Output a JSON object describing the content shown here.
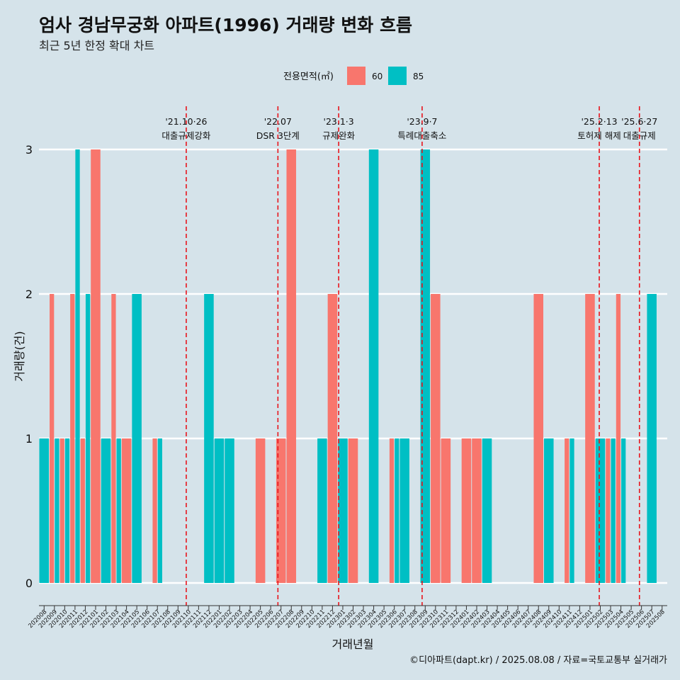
{
  "chart_data": {
    "type": "bar",
    "title": "엄사 경남무궁화 아파트(1996) 거래량 변화 흐름",
    "subtitle": "최근 5년 한정 확대 차트",
    "xlabel": "거래년월",
    "ylabel": "거래량(건)",
    "ylim": [
      0,
      3
    ],
    "yticks": [
      "0",
      "1",
      "2",
      "3"
    ],
    "legend": {
      "title": "전용면적(㎡)",
      "position": "top"
    },
    "categories": [
      "202008",
      "202009",
      "202010",
      "202011",
      "202012",
      "202101",
      "202102",
      "202103",
      "202104",
      "202105",
      "202106",
      "202107",
      "202108",
      "202109",
      "202110",
      "202111",
      "202112",
      "202201",
      "202202",
      "202203",
      "202204",
      "202205",
      "202206",
      "202207",
      "202208",
      "202209",
      "202210",
      "202211",
      "202212",
      "202301",
      "202302",
      "202303",
      "202304",
      "202305",
      "202306",
      "202307",
      "202308",
      "202309",
      "202310",
      "202311",
      "202312",
      "202401",
      "202402",
      "202403",
      "202404",
      "202405",
      "202406",
      "202407",
      "202408",
      "202409",
      "202410",
      "202411",
      "202412",
      "202501",
      "202502",
      "202503",
      "202504",
      "202505",
      "202506",
      "202507",
      "202508"
    ],
    "series": [
      {
        "name": "60",
        "color": "#f8766d",
        "values": [
          0,
          2,
          1,
          2,
          1,
          3,
          0,
          2,
          1,
          0,
          0,
          1,
          0,
          0,
          0,
          0,
          0,
          0,
          0,
          0,
          0,
          1,
          0,
          1,
          3,
          0,
          0,
          0,
          2,
          0,
          1,
          0,
          0,
          0,
          1,
          0,
          0,
          0,
          2,
          1,
          0,
          1,
          1,
          0,
          0,
          0,
          0,
          0,
          2,
          0,
          0,
          1,
          0,
          2,
          0,
          1,
          2,
          0,
          0,
          0,
          0
        ]
      },
      {
        "name": "85",
        "color": "#00bfc4",
        "values": [
          1,
          1,
          1,
          3,
          2,
          0,
          1,
          1,
          0,
          2,
          0,
          1,
          0,
          0,
          0,
          0,
          2,
          1,
          1,
          0,
          0,
          0,
          0,
          0,
          0,
          0,
          0,
          1,
          0,
          1,
          0,
          0,
          3,
          0,
          1,
          1,
          0,
          3,
          0,
          0,
          0,
          0,
          0,
          1,
          0,
          0,
          0,
          0,
          0,
          1,
          0,
          1,
          0,
          0,
          1,
          1,
          1,
          0,
          0,
          2,
          0
        ]
      }
    ],
    "annotations": [
      {
        "at": "202110",
        "offset": 0.3,
        "date": "'21.10·26",
        "label": "대출규제강화"
      },
      {
        "at": "202207",
        "offset": 0.2,
        "date": "'22.07",
        "label": "DSR 3단계"
      },
      {
        "at": "202301",
        "offset": 0.1,
        "date": "'23.1·3",
        "label": "규제완화"
      },
      {
        "at": "202309",
        "offset": 0.2,
        "date": "'23.9·7",
        "label": "특례대출축소"
      },
      {
        "at": "202502",
        "offset": 0.4,
        "date": "'25.2·13",
        "label": "토허제 해제"
      },
      {
        "at": "202506",
        "offset": 0.3,
        "date": "'25.6·27",
        "label": "대출규제"
      }
    ],
    "caption": "©디아파트(dapt.kr) / 2025.08.08 / 자료=국토교통부 실거래가"
  }
}
